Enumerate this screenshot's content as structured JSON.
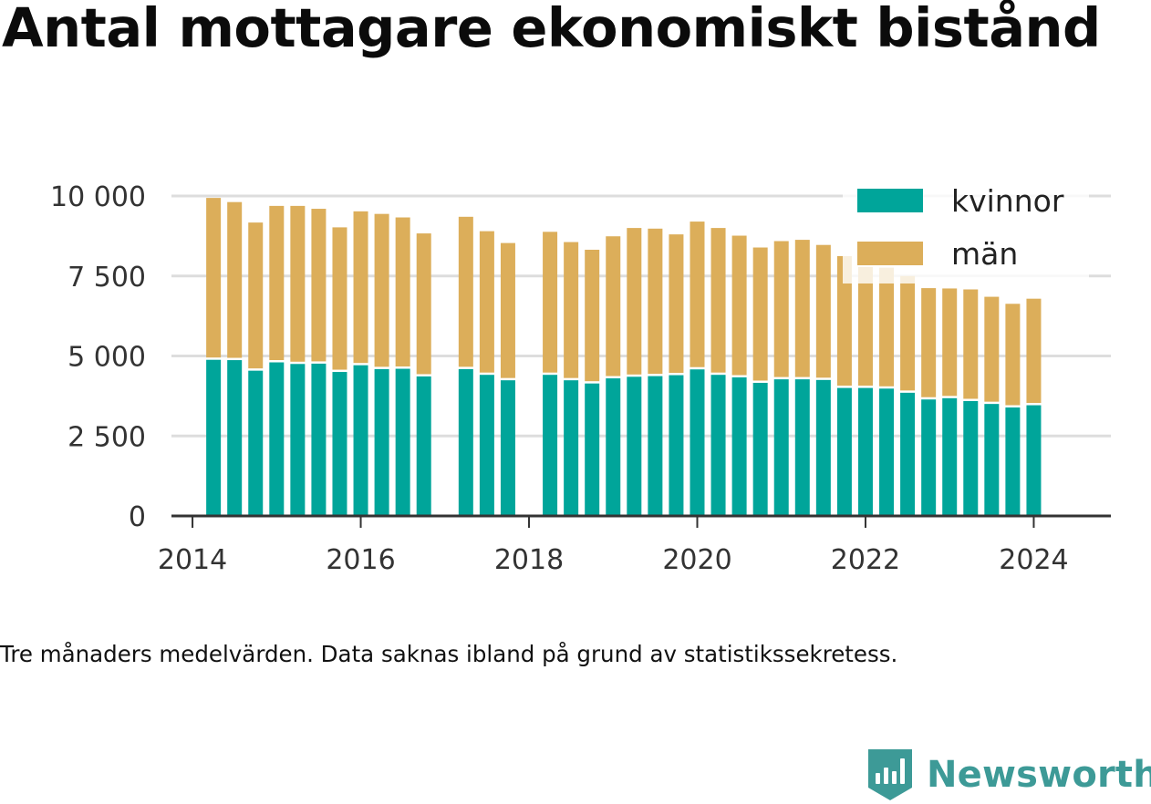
{
  "title": "Antal mottagare ekonomiskt bistånd",
  "note": "Tre månaders medelvärden. Data saknas ibland på grund av statistikssekretess.",
  "brand": "Newsworthy",
  "colors": {
    "kvinnor": "#00a59a",
    "man": "#dcae5a",
    "grid": "#dddddd",
    "axis": "#333333",
    "brand": "#3d9a97"
  },
  "chart_data": {
    "type": "bar",
    "stacked": true,
    "x_ticks": [
      "2014",
      "2016",
      "2018",
      "2020",
      "2022",
      "2024"
    ],
    "y_ticks": [
      "0",
      "2 500",
      "5 000",
      "7 500",
      "10 000"
    ],
    "ylim": [
      0,
      10000
    ],
    "xlim": [
      "2013-10",
      "2024-12"
    ],
    "legend_position": "top-right",
    "grid": true,
    "x": [
      "2014-04",
      "2014-07",
      "2014-10",
      "2015-01",
      "2015-04",
      "2015-07",
      "2015-10",
      "2016-01",
      "2016-04",
      "2016-07",
      "2016-10",
      "2017-04",
      "2017-07",
      "2017-10",
      "2018-04",
      "2018-07",
      "2018-10",
      "2019-01",
      "2019-04",
      "2019-07",
      "2019-10",
      "2020-01",
      "2020-04",
      "2020-07",
      "2020-10",
      "2021-01",
      "2021-04",
      "2021-07",
      "2021-10",
      "2022-01",
      "2022-04",
      "2022-07",
      "2022-10",
      "2023-01",
      "2023-04",
      "2023-07",
      "2023-10",
      "2024-01"
    ],
    "series": [
      {
        "name": "kvinnor",
        "values": [
          4880,
          4870,
          4540,
          4800,
          4750,
          4760,
          4500,
          4710,
          4590,
          4600,
          4360,
          4590,
          4410,
          4240,
          4410,
          4240,
          4140,
          4300,
          4350,
          4370,
          4400,
          4580,
          4410,
          4330,
          4160,
          4270,
          4270,
          4250,
          4000,
          4000,
          3980,
          3850,
          3640,
          3680,
          3590,
          3500,
          3390,
          3460
        ]
      },
      {
        "name": "män",
        "values": [
          5060,
          4940,
          4630,
          4890,
          4940,
          4840,
          4520,
          4810,
          4850,
          4730,
          4470,
          4760,
          4490,
          4290,
          4470,
          4320,
          4180,
          4440,
          4650,
          4610,
          4400,
          4620,
          4590,
          4430,
          4230,
          4320,
          4360,
          4220,
          4120,
          3780,
          3780,
          3650,
          3480,
          3430,
          3490,
          3350,
          3240,
          3330
        ]
      }
    ]
  }
}
